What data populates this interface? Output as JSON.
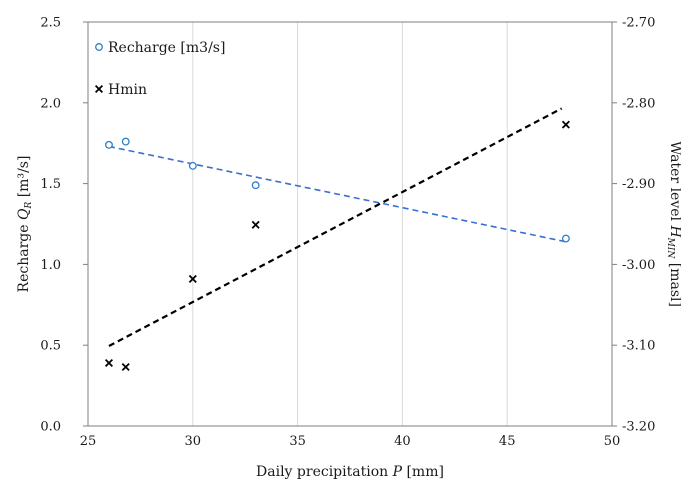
{
  "chart_data": {
    "type": "scatter",
    "xlabel": "Daily precipitation",
    "xlabel_var": "P",
    "xlabel_unit": "[mm]",
    "ylabel_left": "Recharge",
    "ylabel_left_var": "Q",
    "ylabel_left_sub": "R",
    "ylabel_left_unit": "[m³/s]",
    "ylabel_right": "Water level",
    "ylabel_right_var": "H",
    "ylabel_right_sub": "MIN",
    "ylabel_right_unit": "[masl]",
    "xlim": [
      25,
      50
    ],
    "ylim_left": [
      0,
      2.5
    ],
    "ylim_right": [
      -3.2,
      -2.7
    ],
    "x_ticks": [
      "25",
      "30",
      "35",
      "40",
      "45",
      "50"
    ],
    "y_left_ticks": [
      "0.0",
      "0.5",
      "1.0",
      "1.5",
      "2.0",
      "2.5"
    ],
    "y_right_ticks": [
      "-3.20",
      "-3.10",
      "-3.00",
      "-2.90",
      "-2.80",
      "-2.70"
    ],
    "grid": "vertical",
    "legend_position": "top-left",
    "series": [
      {
        "name": "Recharge [m3/s]",
        "axis": "left",
        "marker": "circle",
        "color": "#2e7fc4",
        "points": [
          [
            26.0,
            1.74
          ],
          [
            26.8,
            1.76
          ],
          [
            30.0,
            1.61
          ],
          [
            33.0,
            1.49
          ],
          [
            47.8,
            1.16
          ]
        ],
        "trendline": {
          "style": "dashed",
          "color": "#3a6fd0",
          "from": [
            26.0,
            1.73
          ],
          "to": [
            47.8,
            1.14
          ]
        }
      },
      {
        "name": "Hmin",
        "axis": "right",
        "marker": "x",
        "color": "#000000",
        "points": [
          [
            26.0,
            -3.122
          ],
          [
            26.8,
            -3.127
          ],
          [
            30.0,
            -3.018
          ],
          [
            33.0,
            -2.951
          ],
          [
            47.8,
            -2.827
          ]
        ],
        "trendline": {
          "style": "dashed",
          "color": "#000000",
          "from": [
            26.0,
            -3.101
          ],
          "to": [
            47.6,
            -2.807
          ]
        }
      }
    ]
  }
}
